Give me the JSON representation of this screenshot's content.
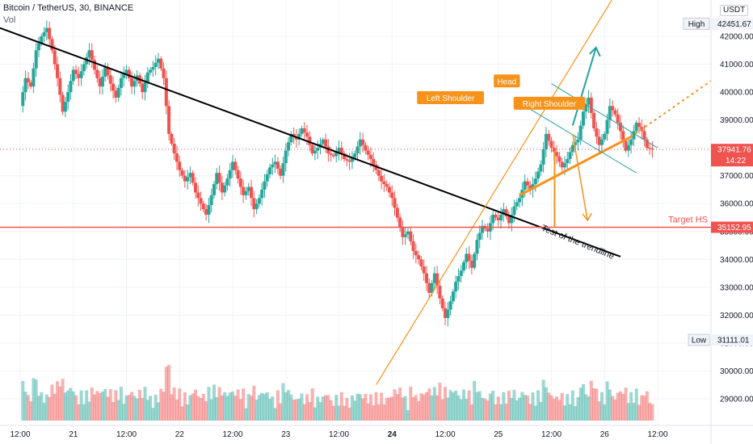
{
  "header": {
    "symbol": "Bitcoin / TetherUS, 30, BINANCE",
    "volume_label": "Vol",
    "currency": "USDT"
  },
  "chart_data": {
    "type": "candlestick",
    "price_axis": {
      "ticks": [
        29000,
        30000,
        31000,
        32000,
        33000,
        34000,
        35000,
        36000,
        37000,
        38000,
        39000,
        40000,
        41000,
        42000
      ],
      "tick_labels": [
        "29000.00",
        "30000.00",
        "31000.00",
        "32000.00",
        "33000.00",
        "34000.00",
        "35000.00",
        "36000.00",
        "37000.00",
        "38000.00",
        "39000.00",
        "40000.00",
        "41000.00",
        "42000.00"
      ],
      "top_partial_label": "4",
      "range": [
        27700,
        43300
      ]
    },
    "time_axis": {
      "labels": [
        "12:00",
        "21",
        "12:00",
        "22",
        "12:00",
        "23",
        "12:00",
        "24",
        "12:00",
        "25",
        "12:00",
        "26",
        "12:00"
      ],
      "bold": [
        "24"
      ],
      "range": [
        0,
        6.2
      ]
    },
    "markers": {
      "high": {
        "label": "High",
        "value": "42451.67",
        "price": 42451.67
      },
      "current": {
        "value": "37941.76",
        "countdown": "14:22",
        "price": 37941.76
      },
      "low": {
        "label": "Low",
        "value": "31111.01",
        "price": 31111.01
      },
      "target": {
        "label": "Target HS",
        "value": "35152.95",
        "price": 35152.95
      }
    },
    "annotations": {
      "left_shoulder": "Left Shoulder",
      "head": "Head",
      "right_shoulder": "Right Shoulder",
      "trendline_test": "Test of the trendline"
    },
    "price_path": [
      [
        0.0,
        39500
      ],
      [
        0.05,
        40500
      ],
      [
        0.1,
        40200
      ],
      [
        0.15,
        41500
      ],
      [
        0.2,
        42000
      ],
      [
        0.25,
        42300
      ],
      [
        0.3,
        41500
      ],
      [
        0.35,
        40500
      ],
      [
        0.4,
        39300
      ],
      [
        0.45,
        40000
      ],
      [
        0.5,
        40800
      ],
      [
        0.55,
        40500
      ],
      [
        0.6,
        41000
      ],
      [
        0.65,
        41500
      ],
      [
        0.7,
        40800
      ],
      [
        0.75,
        40200
      ],
      [
        0.8,
        40900
      ],
      [
        0.85,
        40300
      ],
      [
        0.9,
        39800
      ],
      [
        0.95,
        40500
      ],
      [
        1.0,
        40800
      ],
      [
        1.05,
        40200
      ],
      [
        1.1,
        40600
      ],
      [
        1.15,
        40000
      ],
      [
        1.2,
        40700
      ],
      [
        1.25,
        40900
      ],
      [
        1.3,
        41200
      ],
      [
        1.35,
        40500
      ],
      [
        1.4,
        38500
      ],
      [
        1.45,
        37800
      ],
      [
        1.5,
        37200
      ],
      [
        1.55,
        36800
      ],
      [
        1.6,
        37100
      ],
      [
        1.65,
        36400
      ],
      [
        1.7,
        36000
      ],
      [
        1.75,
        35600
      ],
      [
        1.8,
        36300
      ],
      [
        1.85,
        37100
      ],
      [
        1.9,
        36400
      ],
      [
        1.95,
        36900
      ],
      [
        2.0,
        37500
      ],
      [
        2.05,
        36900
      ],
      [
        2.1,
        36300
      ],
      [
        2.15,
        36600
      ],
      [
        2.2,
        35800
      ],
      [
        2.25,
        36200
      ],
      [
        2.3,
        36800
      ],
      [
        2.35,
        37300
      ],
      [
        2.4,
        37500
      ],
      [
        2.45,
        37000
      ],
      [
        2.5,
        37900
      ],
      [
        2.55,
        38500
      ],
      [
        2.6,
        38300
      ],
      [
        2.65,
        38700
      ],
      [
        2.7,
        38400
      ],
      [
        2.75,
        37800
      ],
      [
        2.8,
        38000
      ],
      [
        2.85,
        38300
      ],
      [
        2.9,
        37800
      ],
      [
        2.95,
        37700
      ],
      [
        3.0,
        38000
      ],
      [
        3.05,
        37600
      ],
      [
        3.1,
        37500
      ],
      [
        3.15,
        37800
      ],
      [
        3.2,
        38300
      ],
      [
        3.25,
        37900
      ],
      [
        3.3,
        37600
      ],
      [
        3.35,
        37200
      ],
      [
        3.4,
        36800
      ],
      [
        3.45,
        36600
      ],
      [
        3.5,
        36200
      ],
      [
        3.55,
        35500
      ],
      [
        3.6,
        34800
      ],
      [
        3.65,
        35000
      ],
      [
        3.7,
        34300
      ],
      [
        3.75,
        34000
      ],
      [
        3.8,
        33500
      ],
      [
        3.85,
        32800
      ],
      [
        3.9,
        33500
      ],
      [
        3.95,
        32600
      ],
      [
        4.0,
        31900
      ],
      [
        4.05,
        32500
      ],
      [
        4.1,
        33200
      ],
      [
        4.15,
        33600
      ],
      [
        4.2,
        34200
      ],
      [
        4.25,
        33700
      ],
      [
        4.3,
        34700
      ],
      [
        4.35,
        35200
      ],
      [
        4.4,
        35000
      ],
      [
        4.45,
        35600
      ],
      [
        4.5,
        35400
      ],
      [
        4.55,
        35800
      ],
      [
        4.6,
        35300
      ],
      [
        4.65,
        35900
      ],
      [
        4.7,
        36200
      ],
      [
        4.75,
        36800
      ],
      [
        4.8,
        36500
      ],
      [
        4.85,
        36900
      ],
      [
        4.9,
        37400
      ],
      [
        4.95,
        38500
      ],
      [
        5.0,
        38000
      ],
      [
        5.05,
        37700
      ],
      [
        5.1,
        37300
      ],
      [
        5.15,
        37600
      ],
      [
        5.2,
        38100
      ],
      [
        5.25,
        38300
      ],
      [
        5.3,
        39300
      ],
      [
        5.35,
        39800
      ],
      [
        5.4,
        38700
      ],
      [
        5.45,
        38100
      ],
      [
        5.5,
        38500
      ],
      [
        5.55,
        39500
      ],
      [
        5.6,
        39200
      ],
      [
        5.65,
        38600
      ],
      [
        5.7,
        37900
      ],
      [
        5.75,
        38300
      ],
      [
        5.8,
        38900
      ],
      [
        5.85,
        38600
      ],
      [
        5.9,
        38000
      ],
      [
        5.95,
        37940
      ]
    ]
  },
  "colors": {
    "up": "#26a69a",
    "down": "#ef5350",
    "trend": "#000000",
    "pattern": "#f7931a",
    "channel": "#22a39f",
    "target": "#ef5350"
  }
}
